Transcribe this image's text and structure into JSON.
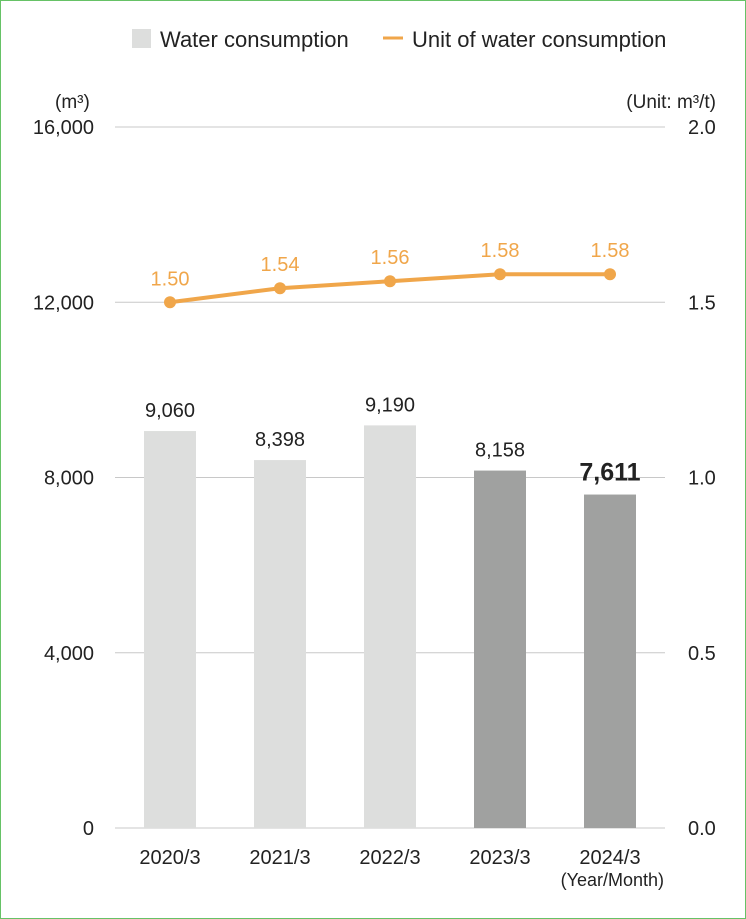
{
  "colors": {
    "frame": "#66c266",
    "bar_light": "#dddedd",
    "bar_dark": "#a0a1a0",
    "line": "#f0a64a",
    "grid": "#c8c8c8",
    "text": "#222222"
  },
  "chart_data": {
    "type": "bar",
    "categories": [
      "2020/3",
      "2021/3",
      "2022/3",
      "2023/3",
      "2024/3"
    ],
    "xlabel": "(Year/Month)",
    "series": [
      {
        "name": "Water consumption",
        "type": "bar",
        "axis": "left",
        "values": [
          9060,
          8398,
          9190,
          8158,
          7611
        ],
        "labels": [
          "9,060",
          "8,398",
          "9,190",
          "8,158",
          "7,611"
        ],
        "bar_shade": [
          "light",
          "light",
          "light",
          "dark",
          "dark"
        ]
      },
      {
        "name": "Unit of water consumption",
        "type": "line",
        "axis": "right",
        "values": [
          1.5,
          1.54,
          1.56,
          1.58,
          1.58
        ],
        "labels": [
          "1.50",
          "1.54",
          "1.56",
          "1.58",
          "1.58"
        ]
      }
    ],
    "y_left": {
      "unit_label": "(m³)",
      "range": [
        0,
        16000
      ],
      "ticks": [
        0,
        4000,
        8000,
        12000,
        16000
      ],
      "tick_labels": [
        "0",
        "4,000",
        "8,000",
        "12,000",
        "16,000"
      ]
    },
    "y_right": {
      "unit_label": "(Unit: m³/t)",
      "range": [
        0.0,
        2.0
      ],
      "ticks": [
        0.0,
        0.5,
        1.0,
        1.5,
        2.0
      ],
      "tick_labels": [
        "0.0",
        "0.5",
        "1.0",
        "1.5",
        "2.0"
      ]
    },
    "grid": true,
    "legend_position": "top-right"
  }
}
